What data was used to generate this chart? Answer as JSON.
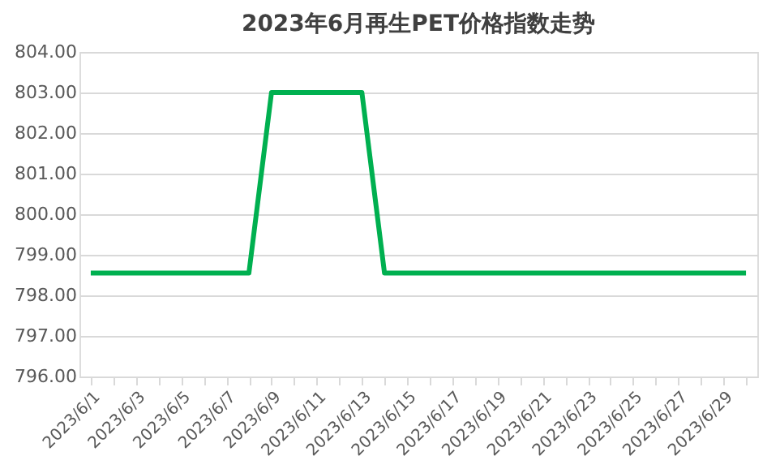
{
  "chart_data": {
    "type": "line",
    "title": "2023年6月再生PET价格指数走势",
    "categories": [
      "2023/6/1",
      null,
      "2023/6/3",
      null,
      "2023/6/5",
      null,
      "2023/6/7",
      null,
      "2023/6/9",
      null,
      "2023/6/11",
      null,
      "2023/6/13",
      null,
      "2023/6/15",
      null,
      "2023/6/17",
      null,
      "2023/6/19",
      null,
      "2023/6/21",
      null,
      "2023/6/23",
      null,
      "2023/6/25",
      null,
      "2023/6/27",
      null,
      "2023/6/29",
      null
    ],
    "series": [
      {
        "color": "#00b050",
        "values": [
          798.55,
          798.55,
          798.55,
          798.55,
          798.55,
          798.55,
          798.55,
          798.55,
          803,
          803,
          803,
          803,
          803,
          798.55,
          798.55,
          798.55,
          798.55,
          798.55,
          798.55,
          798.55,
          798.55,
          798.55,
          798.55,
          798.55,
          798.55,
          798.55,
          798.55,
          798.55,
          798.55,
          798.55
        ]
      }
    ],
    "ylim": [
      796,
      804
    ],
    "yticks": [
      {
        "value": 796,
        "label": "796.00"
      },
      {
        "value": 797,
        "label": "797.00"
      },
      {
        "value": 798,
        "label": "798.00"
      },
      {
        "value": 799,
        "label": "799.00"
      },
      {
        "value": 800,
        "label": "800.00"
      },
      {
        "value": 801,
        "label": "801.00"
      },
      {
        "value": 802,
        "label": "802.00"
      },
      {
        "value": 803,
        "label": "803.00"
      },
      {
        "value": 804,
        "label": "804.00"
      }
    ],
    "grid": "y",
    "legend": false,
    "marker": "none",
    "line_style": "solid"
  }
}
